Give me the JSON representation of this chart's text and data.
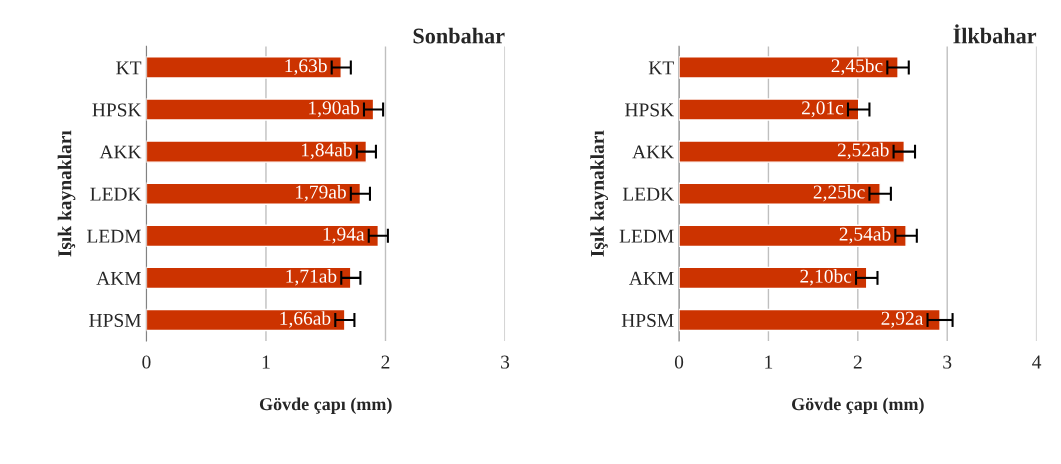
{
  "chart_data": [
    {
      "type": "bar",
      "orientation": "horizontal",
      "title": "Sonbahar",
      "xlabel": "Gövde çapı (mm)",
      "ylabel": "Işık kaynakları",
      "categories": [
        "KT",
        "HPSK",
        "AKK",
        "LEDK",
        "LEDM",
        "AKM",
        "HPSM"
      ],
      "values": [
        1.63,
        1.9,
        1.84,
        1.79,
        1.94,
        1.71,
        1.66
      ],
      "errors": [
        0.08,
        0.08,
        0.08,
        0.08,
        0.08,
        0.08,
        0.08
      ],
      "value_labels": [
        "1,63b",
        "1,90ab",
        "1,84ab",
        "1,79ab",
        "1,94a",
        "1,71ab",
        "1,66ab"
      ],
      "color": "#cc3300",
      "xlim": [
        0,
        3
      ],
      "xticks": [
        0,
        1,
        2,
        3
      ],
      "grid": "x"
    },
    {
      "type": "bar",
      "orientation": "horizontal",
      "title": "İlkbahar",
      "xlabel": "Gövde çapı (mm)",
      "ylabel": "Işık kaynakları",
      "categories": [
        "KT",
        "HPSK",
        "AKK",
        "LEDK",
        "LEDM",
        "AKM",
        "HPSM"
      ],
      "values": [
        2.45,
        2.01,
        2.52,
        2.25,
        2.54,
        2.1,
        2.92
      ],
      "errors": [
        0.12,
        0.12,
        0.12,
        0.12,
        0.12,
        0.12,
        0.14
      ],
      "value_labels": [
        "2,45bc",
        "2,01c",
        "2,52ab",
        "2,25bc",
        "2,54ab",
        "2,10bc",
        "2,92a"
      ],
      "color": "#cc3300",
      "xlim": [
        0,
        4
      ],
      "xticks": [
        0,
        1,
        2,
        3,
        4
      ],
      "grid": "x"
    }
  ]
}
